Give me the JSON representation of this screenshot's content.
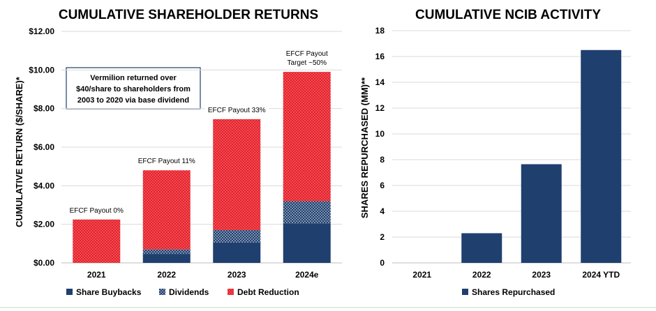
{
  "colors": {
    "navy": "#1f3f6e",
    "red": "#e8202a",
    "white": "#ffffff",
    "grid": "#d9d9d9"
  },
  "chart_data": [
    {
      "type": "bar",
      "title": "CUMULATIVE SHAREHOLDER RETURNS",
      "ylabel": "CUMULATIVE RETURN ($/SHARE)*",
      "ylim": [
        0,
        12
      ],
      "yticks": [
        "$0.00",
        "$2.00",
        "$4.00",
        "$6.00",
        "$8.00",
        "$10.00",
        "$12.00"
      ],
      "categories": [
        "2021",
        "2022",
        "2023",
        "2024e"
      ],
      "stacked": true,
      "series": [
        {
          "name": "Share Buybacks",
          "values": [
            0.0,
            0.45,
            1.05,
            2.05
          ]
        },
        {
          "name": "Dividends",
          "values": [
            0.0,
            0.25,
            0.65,
            1.15
          ]
        },
        {
          "name": "Debt Reduction",
          "values": [
            2.25,
            4.1,
            5.75,
            6.7
          ]
        }
      ],
      "annotations": [
        {
          "category": "2021",
          "lines": [
            "EFCF Payout   0%"
          ]
        },
        {
          "category": "2022",
          "lines": [
            "EFCF Payout   11%"
          ]
        },
        {
          "category": "2023",
          "lines": [
            "EFCF Payout   33%"
          ]
        },
        {
          "category": "2024e",
          "lines": [
            "EFCF Payout",
            "Target  ~50%"
          ]
        }
      ],
      "note": [
        "Vermilion returned  over",
        "$40/share to shareholders from",
        "2003 to 2020 via base dividend"
      ],
      "legend_position": "bottom",
      "grid": true
    },
    {
      "type": "bar",
      "title": "CUMULATIVE NCIB ACTIVITY",
      "ylabel": "SHARES REPURCHASED (MM)**",
      "ylim": [
        0,
        18
      ],
      "yticks": [
        "0",
        "2",
        "4",
        "6",
        "8",
        "10",
        "12",
        "14",
        "16",
        "18"
      ],
      "categories": [
        "2021",
        "2022",
        "2023",
        "2024 YTD"
      ],
      "series": [
        {
          "name": "Shares Repurchased",
          "values": [
            0,
            2.3,
            7.65,
            16.5
          ]
        }
      ],
      "legend_position": "bottom",
      "grid": true
    }
  ]
}
